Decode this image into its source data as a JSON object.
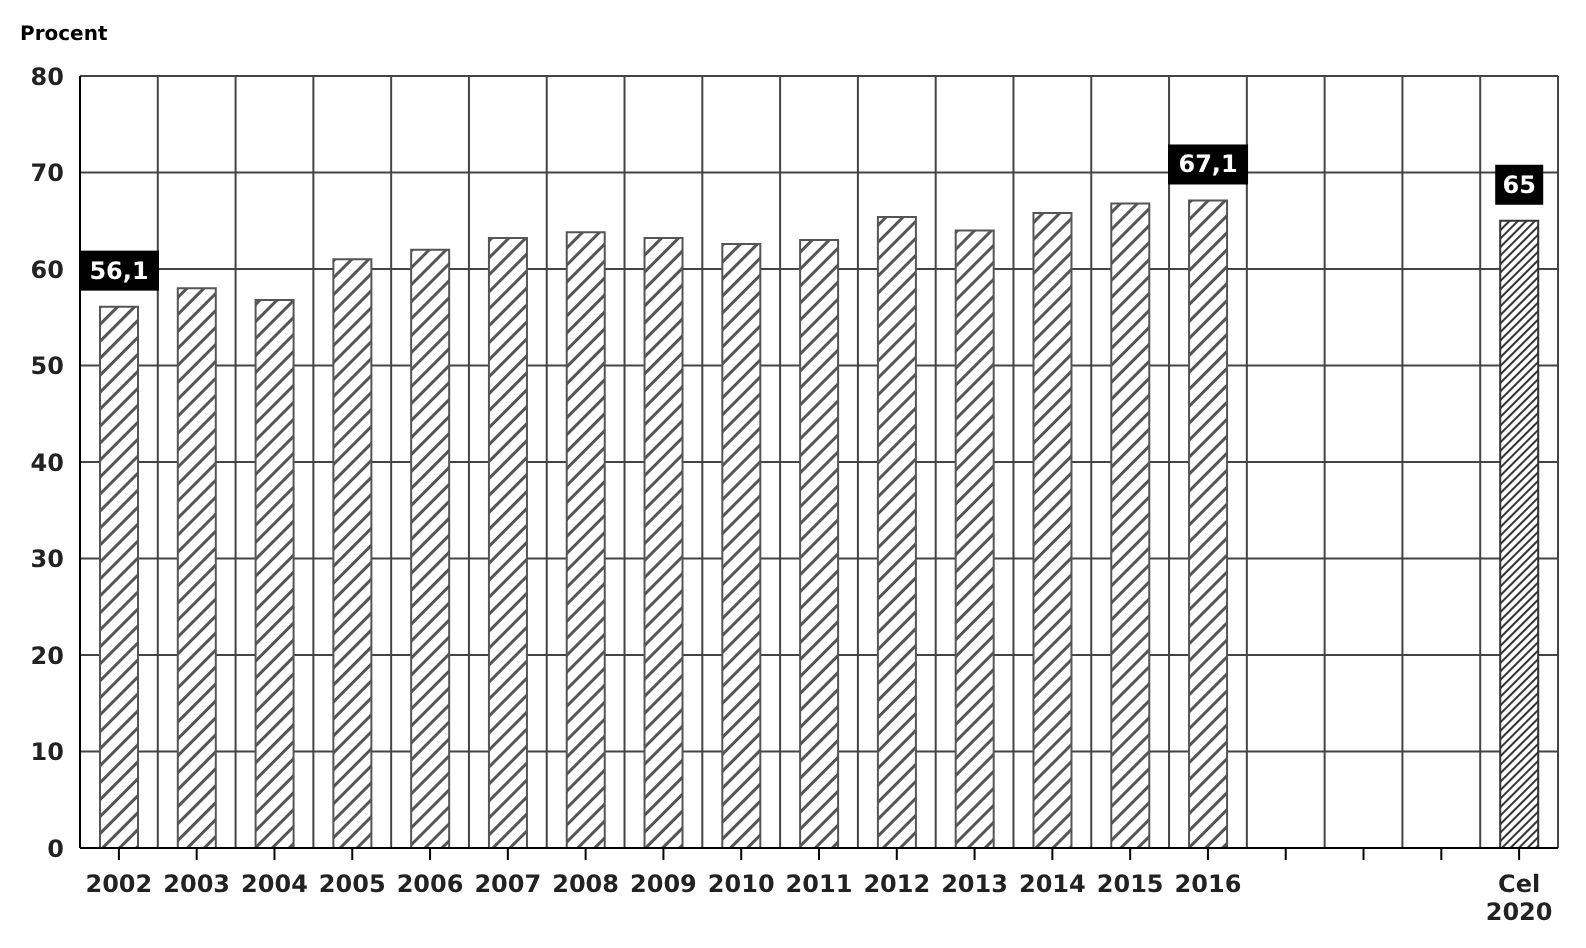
{
  "chart_data": {
    "type": "bar",
    "ylabel": "Procent",
    "categories": [
      "2002",
      "2003",
      "2004",
      "2005",
      "2006",
      "2007",
      "2008",
      "2009",
      "2010",
      "2011",
      "2012",
      "2013",
      "2014",
      "2015",
      "2016",
      null,
      null,
      null,
      "Cel 2020"
    ],
    "values": [
      56.1,
      58,
      56.8,
      61,
      62,
      63.2,
      63.8,
      63.2,
      62.6,
      63,
      65.4,
      64,
      65.8,
      66.8,
      67.1,
      null,
      null,
      null,
      65
    ],
    "colors": [
      "#555555",
      "#555555",
      "#555555",
      "#555555",
      "#555555",
      "#555555",
      "#555555",
      "#555555",
      "#555555",
      "#555555",
      "#555555",
      "#555555",
      "#555555",
      "#555555",
      "#555555",
      "#555555",
      "#555555",
      "#555555",
      "#333333"
    ],
    "value_labels": [
      "56,1",
      null,
      null,
      null,
      null,
      null,
      null,
      null,
      null,
      null,
      null,
      null,
      null,
      null,
      "67,1",
      null,
      null,
      null,
      "65"
    ],
    "ylim": [
      0,
      80
    ],
    "yticks": [
      0,
      10,
      20,
      30,
      40,
      50,
      60,
      70,
      80
    ],
    "grid": true
  }
}
